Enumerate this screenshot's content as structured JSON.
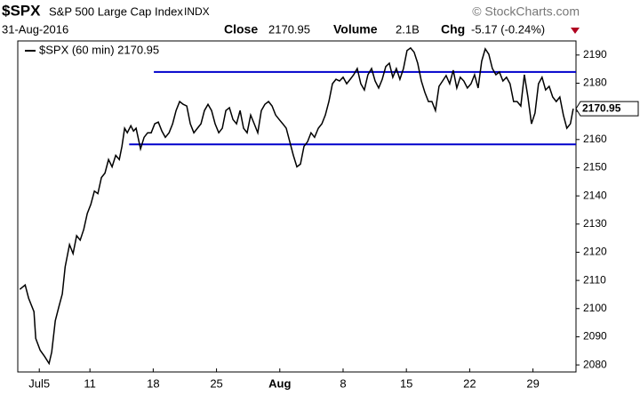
{
  "header": {
    "symbol": "$SPX",
    "name": "S&P 500 Large Cap Index",
    "exchange": "INDX",
    "source": "© StockCharts.com",
    "date": "31-Aug-2016",
    "close_label": "Close",
    "close": "2170.95",
    "volume_label": "Volume",
    "volume": "2.1B",
    "chg_label": "Chg",
    "chg": "-5.17 (-0.24%)"
  },
  "chart_data": {
    "type": "line",
    "xlim": [
      -1.7,
      42.4
    ],
    "ylim": [
      2077.5,
      2195
    ],
    "xticks": [
      {
        "value": 0,
        "label": "Jul5"
      },
      {
        "value": 4,
        "label": "11"
      },
      {
        "value": 9,
        "label": "18"
      },
      {
        "value": 14,
        "label": "25"
      },
      {
        "value": 19,
        "label": "Aug"
      },
      {
        "value": 24,
        "label": "8"
      },
      {
        "value": 29,
        "label": "15"
      },
      {
        "value": 34,
        "label": "22"
      },
      {
        "value": 39,
        "label": "29"
      }
    ],
    "yticks": [
      2080,
      2090,
      2100,
      2110,
      2120,
      2130,
      2140,
      2150,
      2160,
      2170,
      2180,
      2190
    ],
    "grid": false,
    "legend": "top-left",
    "hlines": [
      {
        "y": 2184,
        "x0": 9.05,
        "x1": 42.4,
        "color": "#0000cc"
      },
      {
        "y": 2158.3,
        "x0": 7.1,
        "x1": 42.4,
        "color": "#0000cc"
      }
    ],
    "x": [
      -1.54,
      -1.12,
      -0.84,
      -0.42,
      -0.28,
      0.07,
      0.42,
      0.77,
      0.98,
      1.26,
      1.54,
      1.82,
      2.04,
      2.39,
      2.67,
      2.95,
      3.23,
      3.51,
      3.79,
      4.07,
      4.35,
      4.63,
      4.91,
      5.19,
      5.47,
      5.75,
      6.04,
      6.32,
      6.53,
      6.74,
      6.95,
      7.23,
      7.44,
      7.65,
      8.0,
      8.28,
      8.56,
      8.84,
      9.12,
      9.4,
      9.68,
      9.96,
      10.25,
      10.53,
      10.81,
      11.09,
      11.37,
      11.65,
      11.93,
      12.21,
      12.49,
      12.77,
      13.05,
      13.33,
      13.61,
      13.89,
      14.18,
      14.46,
      14.74,
      15.02,
      15.3,
      15.58,
      15.86,
      16.14,
      16.42,
      16.7,
      16.98,
      17.26,
      17.54,
      17.82,
      18.11,
      18.39,
      18.67,
      18.95,
      19.23,
      19.51,
      19.79,
      20.07,
      20.35,
      20.63,
      20.91,
      21.19,
      21.47,
      21.75,
      22.04,
      22.32,
      22.6,
      22.88,
      23.16,
      23.44,
      23.72,
      24.0,
      24.28,
      24.56,
      24.84,
      25.12,
      25.4,
      25.68,
      25.96,
      26.25,
      26.53,
      26.81,
      27.09,
      27.37,
      27.65,
      27.93,
      28.21,
      28.49,
      28.77,
      29.05,
      29.33,
      29.61,
      29.89,
      30.18,
      30.46,
      30.74,
      31.02,
      31.3,
      31.58,
      31.86,
      32.14,
      32.42,
      32.7,
      32.98,
      33.26,
      33.54,
      33.82,
      34.11,
      34.39,
      34.67,
      34.95,
      35.23,
      35.51,
      35.79,
      36.07,
      36.35,
      36.63,
      36.91,
      37.19,
      37.47,
      37.75,
      38.04,
      38.32,
      38.6,
      38.88,
      39.16,
      39.44,
      39.72,
      40.0,
      40.28,
      40.56,
      40.84,
      41.12,
      41.4,
      41.68,
      41.96,
      42.18
    ],
    "series": [
      {
        "name": "$SPX (60 min) 2170.95",
        "color": "#000000",
        "values": [
          2106.8,
          2108.4,
          2103.7,
          2098.9,
          2089.4,
          2085.2,
          2083,
          2080.5,
          2084.6,
          2095.7,
          2100.5,
          2105.2,
          2114.8,
          2122.7,
          2119.5,
          2125.9,
          2124.3,
          2128.1,
          2133.8,
          2137,
          2141.7,
          2140.8,
          2146.5,
          2148.1,
          2152.9,
          2150.3,
          2154.4,
          2152.9,
          2157.6,
          2164,
          2162.4,
          2164.9,
          2163,
          2164,
          2156.7,
          2160.8,
          2162.4,
          2162.4,
          2165.6,
          2166.2,
          2163,
          2160.8,
          2162.4,
          2165.6,
          2170.3,
          2173.5,
          2172.5,
          2171.9,
          2165.6,
          2162.4,
          2164,
          2165.6,
          2170.3,
          2172.5,
          2170.3,
          2165.6,
          2162.4,
          2164,
          2170.3,
          2171.3,
          2167.1,
          2165.6,
          2170.3,
          2164,
          2162.4,
          2168.7,
          2165.6,
          2162.4,
          2170.3,
          2172.5,
          2173.5,
          2171.9,
          2168.7,
          2167.1,
          2165.6,
          2164,
          2159.2,
          2154.4,
          2150.3,
          2151.3,
          2157.6,
          2159.2,
          2162.4,
          2160.8,
          2164,
          2165.6,
          2168.7,
          2173.5,
          2179.8,
          2181.4,
          2180.8,
          2182.1,
          2179.8,
          2181.4,
          2183,
          2185.2,
          2179.8,
          2177.6,
          2183,
          2185.2,
          2180.8,
          2178.3,
          2181.4,
          2185.9,
          2187.1,
          2182.1,
          2185.2,
          2181.4,
          2185.2,
          2191.6,
          2192.5,
          2191,
          2187.1,
          2180.8,
          2176.7,
          2173.5,
          2173.5,
          2170.3,
          2178.9,
          2180.8,
          2182.7,
          2179.8,
          2184.6,
          2178.3,
          2182.1,
          2180.8,
          2178.3,
          2179.8,
          2183,
          2178.3,
          2187.8,
          2192.2,
          2190.3,
          2185.2,
          2183,
          2184,
          2180.8,
          2182.1,
          2179.8,
          2173.5,
          2173.5,
          2171.9,
          2183,
          2175.1,
          2165.6,
          2169.4,
          2179.8,
          2182.1,
          2177.6,
          2178.9,
          2175.1,
          2173.5,
          2175.1,
          2168.7,
          2164,
          2165.6,
          2170.95
        ]
      }
    ]
  }
}
